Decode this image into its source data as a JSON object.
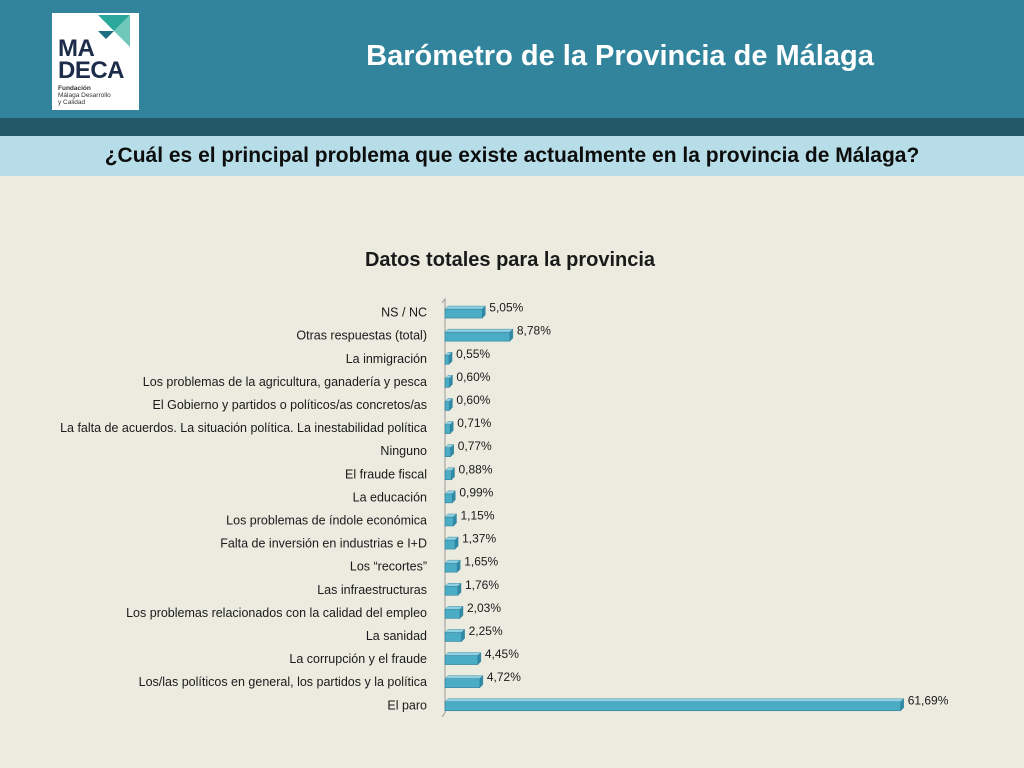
{
  "header": {
    "title": "Barómetro de la Provincia de Málaga",
    "logo": {
      "line1": "MA",
      "line2": "DECA",
      "sub_bold": "Fundación",
      "sub_lines": [
        "Málaga Desarrollo",
        "y Calidad"
      ]
    }
  },
  "question": "¿Cuál es el principal problema que existe actualmente en la provincia de Málaga?",
  "colors": {
    "header": "#31849b",
    "header_stripe": "#215968",
    "question_band": "#b7dee8",
    "background": "#ecebe0",
    "bar": "#4bacc6"
  },
  "chart_data": {
    "type": "bar",
    "orientation": "horizontal",
    "title": "Datos totales para la provincia",
    "categories": [
      "NS / NC",
      "Otras respuestas (total)",
      "La inmigración",
      "Los problemas de la agricultura, ganadería y pesca",
      "El Gobierno y partidos o políticos/as concretos/as",
      "La falta de acuerdos. La situación política. La inestabilidad política",
      "Ninguno",
      "El fraude fiscal",
      "La educación",
      "Los problemas de índole económica",
      "Falta de inversión en industrias e I+D",
      "Los “recortes”",
      "Las infraestructuras",
      "Los problemas relacionados con la calidad del empleo",
      "La sanidad",
      "La corrupción y el fraude",
      "Los/las políticos en general, los partidos y la política",
      "El paro"
    ],
    "values": [
      5.05,
      8.78,
      0.55,
      0.6,
      0.6,
      0.71,
      0.77,
      0.88,
      0.99,
      1.15,
      1.37,
      1.65,
      1.76,
      2.03,
      2.25,
      4.45,
      4.72,
      61.69
    ],
    "labels": [
      "5,05%",
      "8,78%",
      "0,55%",
      "0,60%",
      "0,60%",
      "0,71%",
      "0,77%",
      "0,88%",
      "0,99%",
      "1,15%",
      "1,37%",
      "1,65%",
      "1,76%",
      "2,03%",
      "2,25%",
      "4,45%",
      "4,72%",
      "61,69%"
    ],
    "ylim": [
      0,
      62
    ],
    "grid": false,
    "legend": "none"
  }
}
